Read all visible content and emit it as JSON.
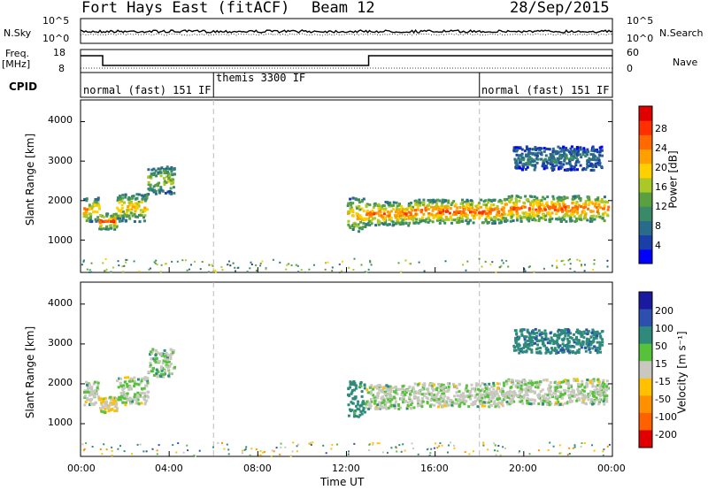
{
  "header": {
    "title": "Fort Hays East (fitACF)",
    "beam": "Beam 12",
    "date": "28/Sep/2015"
  },
  "noise_panel": {
    "left_label": "N.Sky",
    "right_label": "N.Search",
    "left_ticks": [
      "10^5",
      "10^0"
    ],
    "right_ticks": [
      "10^5",
      "10^0"
    ]
  },
  "freq_panel": {
    "left_label": "Freq.",
    "left_unit": "[MHz]",
    "right_label": "Nave",
    "left_ticks": [
      "18",
      "8"
    ],
    "right_ticks": [
      "60",
      "0"
    ]
  },
  "cpid_panel": {
    "label": "CPID",
    "modes": [
      {
        "name": "normal (fast) 151 IF",
        "start_hour": 0,
        "end_hour": 6
      },
      {
        "name": "themis 3300 IF",
        "start_hour": 6,
        "end_hour": 18
      },
      {
        "name": "normal (fast) 151 IF",
        "start_hour": 18,
        "end_hour": 24
      }
    ]
  },
  "x_axis": {
    "label": "Time UT",
    "ticks": [
      "00:00",
      "04:00",
      "08:00",
      "12:00",
      "16:00",
      "20:00",
      "00:00"
    ],
    "range_hours": [
      0,
      24
    ]
  },
  "power_panel": {
    "ylabel": "Slant Range [km]",
    "yticks": [
      "1000",
      "2000",
      "3000",
      "4000"
    ],
    "colorbar_label": "Power [dB]",
    "colorbar_ticks": [
      "28",
      "24",
      "20",
      "16",
      "12",
      "8",
      "4"
    ],
    "colors": [
      "#0000ff",
      "#1a3fa8",
      "#2a6a8a",
      "#3a8a6a",
      "#5aa040",
      "#aac828",
      "#ffd000",
      "#ffa000",
      "#ff6a00",
      "#ff3000",
      "#e00000"
    ]
  },
  "velocity_panel": {
    "ylabel": "Slant Range [km]",
    "yticks": [
      "1000",
      "2000",
      "3000",
      "4000"
    ],
    "colorbar_label": "Velocity [m s⁻¹]",
    "colorbar_ticks": [
      "200",
      "100",
      "50",
      "15",
      "-15",
      "-50",
      "-100",
      "-200"
    ],
    "colors": [
      "#1a1aa0",
      "#2d4fb0",
      "#2e8a7a",
      "#55c23a",
      "#c8c8c0",
      "#ffc000",
      "#ff9000",
      "#ff6000",
      "#e00000"
    ]
  },
  "chart_data": {
    "type": "heatmap",
    "x_unit": "hours UT",
    "y_unit": "slant range km",
    "ylim": [
      180,
      4550
    ],
    "xlim": [
      0,
      24
    ],
    "power_range_db": [
      0,
      30
    ],
    "velocity_range": [
      -200,
      200
    ],
    "echo_bands": [
      {
        "x": [
          0.1,
          0.8
        ],
        "y": [
          1500,
          2100
        ],
        "power": 22,
        "velocity": 0
      },
      {
        "x": [
          0.8,
          1.6
        ],
        "y": [
          1300,
          1700
        ],
        "power": 26,
        "velocity": -10
      },
      {
        "x": [
          1.6,
          3.0
        ],
        "y": [
          1500,
          2200
        ],
        "power": 20,
        "velocity": 0
      },
      {
        "x": [
          3.0,
          4.2
        ],
        "y": [
          2200,
          2900
        ],
        "power": 16,
        "velocity": 5
      },
      {
        "x": [
          12.0,
          12.8
        ],
        "y": [
          1200,
          2100
        ],
        "power": 20,
        "velocity": 30
      },
      {
        "x": [
          12.8,
          15.0
        ],
        "y": [
          1400,
          2000
        ],
        "power": 24,
        "velocity": 0
      },
      {
        "x": [
          15.0,
          19.0
        ],
        "y": [
          1450,
          2050
        ],
        "power": 26,
        "velocity": 0
      },
      {
        "x": [
          19.0,
          23.8
        ],
        "y": [
          1500,
          2150
        ],
        "power": 25,
        "velocity": 0
      },
      {
        "x": [
          19.5,
          23.5
        ],
        "y": [
          2800,
          3400
        ],
        "power": 8,
        "velocity": 40
      }
    ]
  }
}
